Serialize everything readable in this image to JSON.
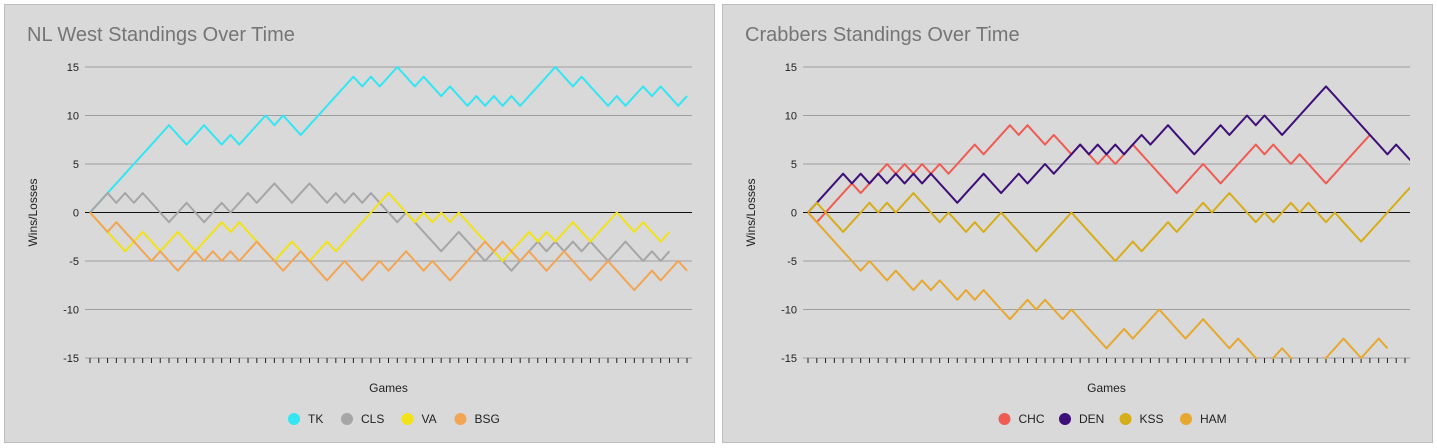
{
  "chart_data": [
    {
      "type": "line",
      "title": "NL West Standings Over Time",
      "xlabel": "Games",
      "ylabel": "Wins/Losses",
      "ylim": [
        -15,
        15
      ],
      "yticks": [
        15,
        10,
        5,
        0,
        -5,
        -10,
        -15
      ],
      "grid": true,
      "legend": "bottom",
      "x_games": 68,
      "series": [
        {
          "name": "TK",
          "color": "#33e6f2",
          "values": [
            0,
            1,
            2,
            3,
            4,
            5,
            6,
            7,
            8,
            9,
            8,
            7,
            8,
            9,
            8,
            7,
            8,
            7,
            8,
            9,
            10,
            9,
            10,
            9,
            8,
            9,
            10,
            11,
            12,
            13,
            14,
            13,
            14,
            13,
            14,
            15,
            14,
            13,
            14,
            13,
            12,
            13,
            12,
            11,
            12,
            11,
            12,
            11,
            12,
            11,
            12,
            13,
            14,
            15,
            14,
            13,
            14,
            13,
            12,
            11,
            12,
            11,
            12,
            13,
            12,
            13,
            12,
            11,
            12
          ]
        },
        {
          "name": "CLS",
          "color": "#a6a6a6",
          "values": [
            0,
            1,
            2,
            1,
            2,
            1,
            2,
            1,
            0,
            -1,
            0,
            1,
            0,
            -1,
            0,
            1,
            0,
            1,
            2,
            1,
            2,
            3,
            2,
            1,
            2,
            3,
            2,
            1,
            2,
            1,
            2,
            1,
            2,
            1,
            0,
            -1,
            0,
            -1,
            -2,
            -3,
            -4,
            -3,
            -2,
            -3,
            -4,
            -5,
            -4,
            -5,
            -6,
            -5,
            -4,
            -3,
            -4,
            -3,
            -4,
            -3,
            -4,
            -3,
            -4,
            -5,
            -4,
            -3,
            -4,
            -5,
            -4,
            -5,
            -4
          ]
        },
        {
          "name": "VA",
          "color": "#f2e21a",
          "values": [
            0,
            -1,
            -2,
            -3,
            -4,
            -3,
            -2,
            -3,
            -4,
            -3,
            -2,
            -3,
            -4,
            -3,
            -2,
            -1,
            -2,
            -1,
            -2,
            -3,
            -4,
            -5,
            -4,
            -3,
            -4,
            -5,
            -4,
            -3,
            -4,
            -3,
            -2,
            -1,
            0,
            1,
            2,
            1,
            0,
            -1,
            0,
            -1,
            0,
            -1,
            0,
            -1,
            -2,
            -3,
            -4,
            -5,
            -4,
            -3,
            -2,
            -3,
            -2,
            -3,
            -2,
            -1,
            -2,
            -3,
            -2,
            -1,
            0,
            -1,
            -2,
            -1,
            -2,
            -3,
            -2
          ]
        },
        {
          "name": "BSG",
          "color": "#f2a552",
          "values": [
            0,
            -1,
            -2,
            -1,
            -2,
            -3,
            -4,
            -5,
            -4,
            -5,
            -6,
            -5,
            -4,
            -5,
            -4,
            -5,
            -4,
            -5,
            -4,
            -3,
            -4,
            -5,
            -6,
            -5,
            -4,
            -5,
            -6,
            -7,
            -6,
            -5,
            -6,
            -7,
            -6,
            -5,
            -6,
            -5,
            -4,
            -5,
            -6,
            -5,
            -6,
            -7,
            -6,
            -5,
            -4,
            -3,
            -4,
            -3,
            -4,
            -5,
            -4,
            -5,
            -6,
            -5,
            -4,
            -5,
            -6,
            -7,
            -6,
            -5,
            -6,
            -7,
            -8,
            -7,
            -6,
            -7,
            -6,
            -5,
            -6
          ]
        }
      ]
    },
    {
      "type": "line",
      "title": "Crabbers Standings Over Time",
      "xlabel": "Games",
      "ylabel": "Wins/Losses",
      "ylim": [
        -15,
        15
      ],
      "yticks": [
        15,
        10,
        5,
        0,
        -5,
        -10,
        -15
      ],
      "grid": true,
      "legend": "bottom",
      "x_games": 68,
      "series": [
        {
          "name": "CHC",
          "color": "#f05c54",
          "values": [
            0,
            -1,
            0,
            1,
            2,
            3,
            2,
            3,
            4,
            5,
            4,
            5,
            4,
            5,
            4,
            5,
            4,
            5,
            6,
            7,
            6,
            7,
            8,
            9,
            8,
            9,
            8,
            7,
            8,
            7,
            6,
            7,
            6,
            5,
            6,
            5,
            6,
            7,
            6,
            5,
            4,
            3,
            2,
            3,
            4,
            5,
            4,
            3,
            4,
            5,
            6,
            7,
            6,
            7,
            6,
            5,
            6,
            5,
            4,
            3,
            4,
            5,
            6,
            7,
            8
          ]
        },
        {
          "name": "DEN",
          "color": "#3d0f78",
          "values": [
            0,
            1,
            2,
            3,
            4,
            3,
            4,
            3,
            4,
            3,
            4,
            3,
            4,
            3,
            4,
            3,
            2,
            1,
            2,
            3,
            4,
            3,
            2,
            3,
            4,
            3,
            4,
            5,
            4,
            5,
            6,
            7,
            6,
            7,
            6,
            7,
            6,
            7,
            8,
            7,
            8,
            9,
            8,
            7,
            6,
            7,
            8,
            9,
            8,
            9,
            10,
            9,
            10,
            9,
            8,
            9,
            10,
            11,
            12,
            13,
            12,
            11,
            10,
            9,
            8,
            7,
            6,
            7,
            6,
            5,
            6
          ]
        },
        {
          "name": "KSS",
          "color": "#d6ad1a",
          "values": [
            0,
            1,
            0,
            -1,
            -2,
            -1,
            0,
            1,
            0,
            1,
            0,
            1,
            2,
            1,
            0,
            -1,
            0,
            -1,
            -2,
            -1,
            -2,
            -1,
            0,
            -1,
            -2,
            -3,
            -4,
            -3,
            -2,
            -1,
            0,
            -1,
            -2,
            -3,
            -4,
            -5,
            -4,
            -3,
            -4,
            -3,
            -2,
            -1,
            -2,
            -1,
            0,
            1,
            0,
            1,
            2,
            1,
            0,
            -1,
            0,
            -1,
            0,
            1,
            0,
            1,
            0,
            -1,
            0,
            -1,
            -2,
            -3,
            -2,
            -1,
            0,
            1,
            2,
            3,
            2
          ]
        },
        {
          "name": "HAM",
          "color": "#e6a830",
          "values": [
            0,
            -1,
            -2,
            -3,
            -4,
            -5,
            -6,
            -5,
            -6,
            -7,
            -6,
            -7,
            -8,
            -7,
            -8,
            -7,
            -8,
            -9,
            -8,
            -9,
            -8,
            -9,
            -10,
            -11,
            -10,
            -9,
            -10,
            -9,
            -10,
            -11,
            -10,
            -11,
            -12,
            -13,
            -14,
            -13,
            -12,
            -13,
            -12,
            -11,
            -10,
            -11,
            -12,
            -13,
            -12,
            -11,
            -12,
            -13,
            -14,
            -13,
            -14,
            -15,
            -16,
            -15,
            -14,
            -15,
            -16,
            -17,
            -16,
            -15,
            -14,
            -13,
            -14,
            -15,
            -14,
            -13,
            -14
          ]
        }
      ]
    }
  ]
}
